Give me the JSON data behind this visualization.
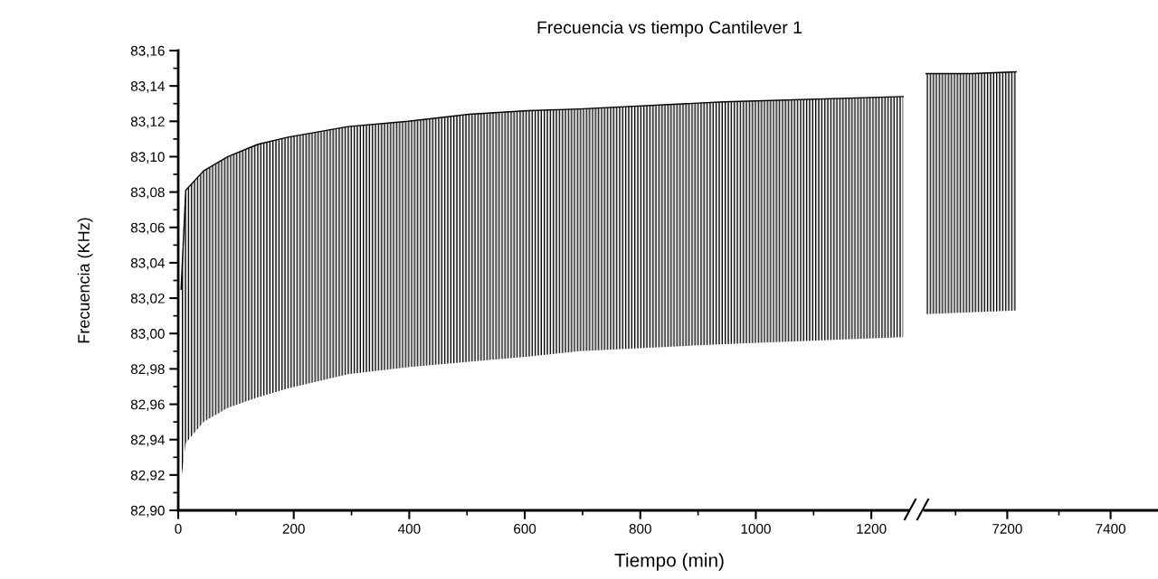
{
  "chart_data": [
    {
      "type": "line",
      "title": "Frecuencia vs tiempo Cantilever 1",
      "xlabel": "Tiempo (min)",
      "ylabel": "Frecuencia (KHz)",
      "xlim": [
        0,
        1264
      ],
      "xticks": [
        0,
        200,
        400,
        600,
        800,
        1000,
        1200
      ],
      "ylim": [
        82.9,
        83.16
      ],
      "yticks": [
        {
          "value": 82.9,
          "label": "82,90"
        },
        {
          "value": 82.92,
          "label": "82,92"
        },
        {
          "value": 82.94,
          "label": "82,94"
        },
        {
          "value": 82.96,
          "label": "82,96"
        },
        {
          "value": 82.98,
          "label": "82,98"
        },
        {
          "value": 83.0,
          "label": "83,00"
        },
        {
          "value": 83.02,
          "label": "83,02"
        },
        {
          "value": 83.04,
          "label": "83,04"
        },
        {
          "value": 83.06,
          "label": "83,06"
        },
        {
          "value": 83.08,
          "label": "83,08"
        },
        {
          "value": 83.1,
          "label": "83,10"
        },
        {
          "value": 83.12,
          "label": "83,12"
        },
        {
          "value": 83.14,
          "label": "83,14"
        },
        {
          "value": 83.16,
          "label": "83,16"
        }
      ],
      "grid": false,
      "marker": "none",
      "line_style": "solid",
      "series": [
        {
          "color": "#000000",
          "x": [
            5,
            13,
            44,
            86,
            138,
            190,
            294,
            398,
            503,
            606,
            695,
            945,
            1255
          ],
          "values": [
            83.025,
            83.081,
            83.092,
            83.1,
            83.107,
            83.111,
            83.117,
            83.12,
            83.124,
            83.126,
            83.127,
            83.131,
            83.134
          ],
          "lower": [
            82.917,
            82.938,
            82.95,
            82.958,
            82.964,
            82.969,
            82.977,
            82.981,
            82.984,
            82.987,
            82.99,
            82.994,
            82.998
          ],
          "upper": [
            83.025,
            83.081,
            83.092,
            83.1,
            83.107,
            83.111,
            83.117,
            83.12,
            83.124,
            83.126,
            83.127,
            83.131,
            83.134
          ]
        }
      ]
    },
    {
      "type": "line",
      "xlim": [
        7040,
        7490
      ],
      "xticks": [
        7200,
        7400
      ],
      "ylim": [
        82.9,
        83.16
      ],
      "tick_labels": "x",
      "grid": false,
      "marker": "none",
      "line_style": "solid",
      "series": [
        {
          "color": "#000000",
          "x": [
            7043,
            7130,
            7217
          ],
          "values": [
            83.147,
            83.147,
            83.148
          ],
          "lower": [
            83.011,
            83.012,
            83.013
          ],
          "upper": [
            83.147,
            83.147,
            83.148
          ]
        }
      ]
    }
  ]
}
